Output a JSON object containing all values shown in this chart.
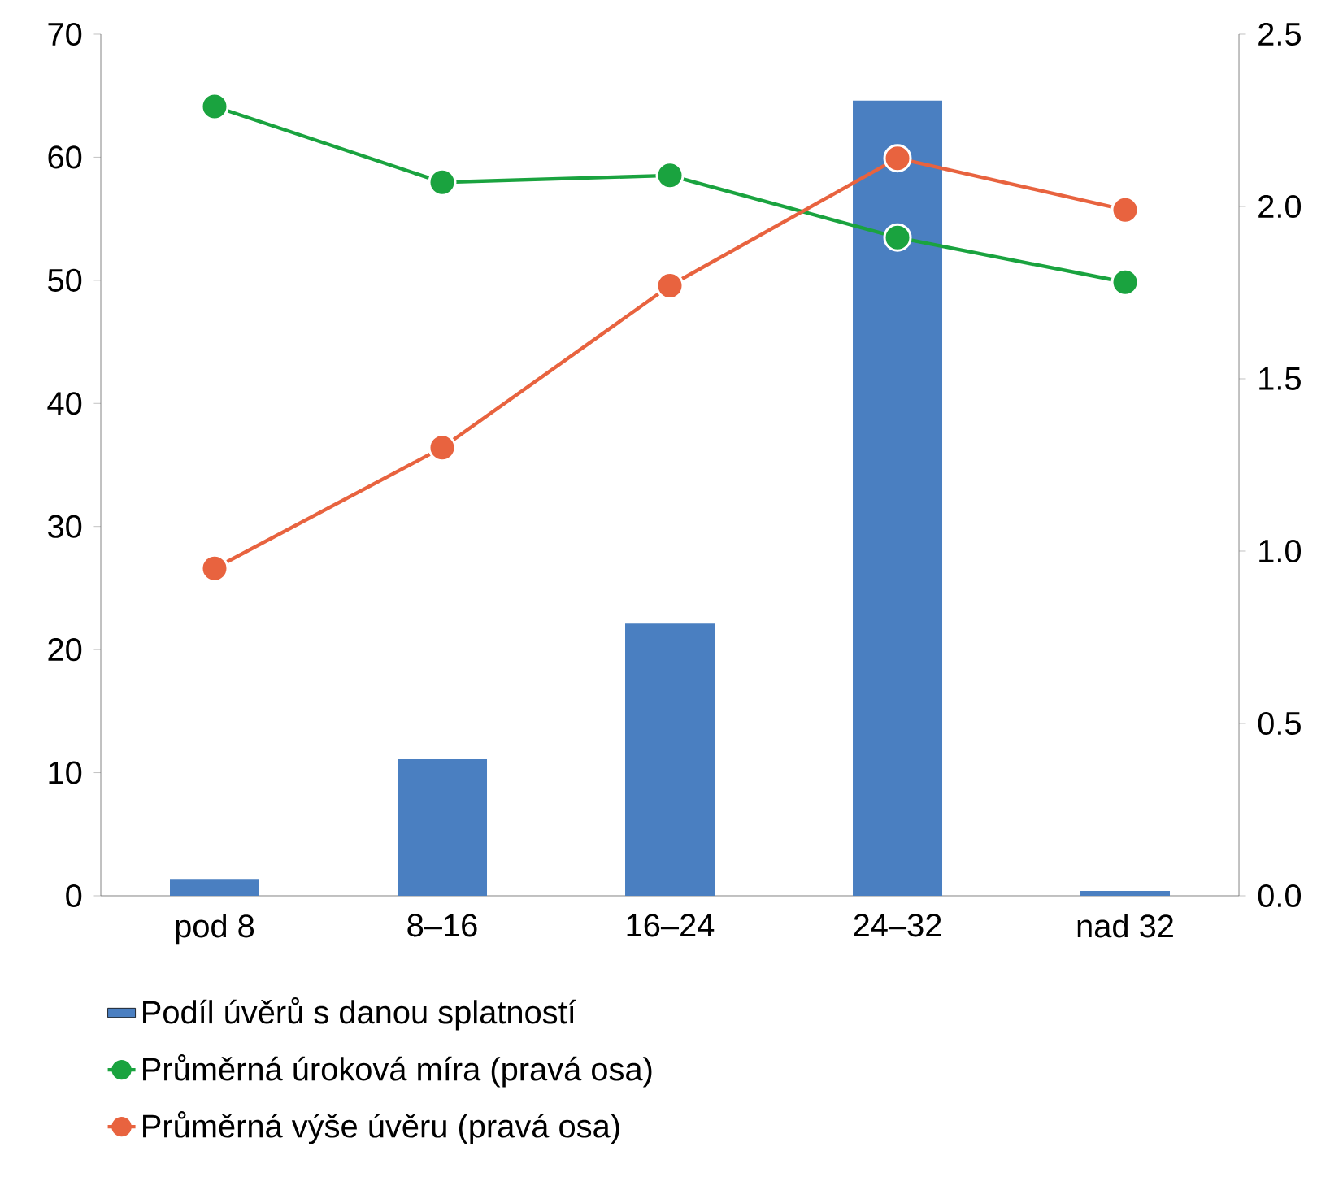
{
  "chart_data": {
    "type": "bar",
    "categories": [
      "pod 8",
      "8–16",
      "16–24",
      "24–32",
      "nad 32"
    ],
    "series": [
      {
        "name": "Podíl úvěrů s danou splatností",
        "color": "#4a7fc1",
        "values": [
          1.3,
          11.1,
          22.1,
          64.6,
          0.4
        ]
      },
      {
        "name": "Průměrná úroková míra (pravá osa)",
        "type": "line",
        "axis": "y2",
        "color": "#1aa33f",
        "values": [
          2.29,
          2.07,
          2.09,
          1.91,
          1.78
        ]
      },
      {
        "name": "Průměrná výše úvěru (pravá osa)",
        "type": "line",
        "axis": "y2",
        "color": "#e8633f",
        "values": [
          0.95,
          1.3,
          1.77,
          2.14,
          1.99
        ]
      }
    ],
    "ylim": [
      0,
      70
    ],
    "yticks": [
      0,
      10,
      20,
      30,
      40,
      50,
      60,
      70
    ],
    "y2lim": [
      0,
      2.5
    ],
    "y2ticks": [
      {
        "value": 0,
        "label": "0.0"
      },
      {
        "value": 0.5,
        "label": "0.5"
      },
      {
        "value": 1,
        "label": "1.0"
      },
      {
        "value": 1.5,
        "label": "1.5"
      },
      {
        "value": 2,
        "label": "2.0"
      },
      {
        "value": 2.5,
        "label": "2.5"
      }
    ],
    "legend": "bottom",
    "marker": "circle"
  }
}
